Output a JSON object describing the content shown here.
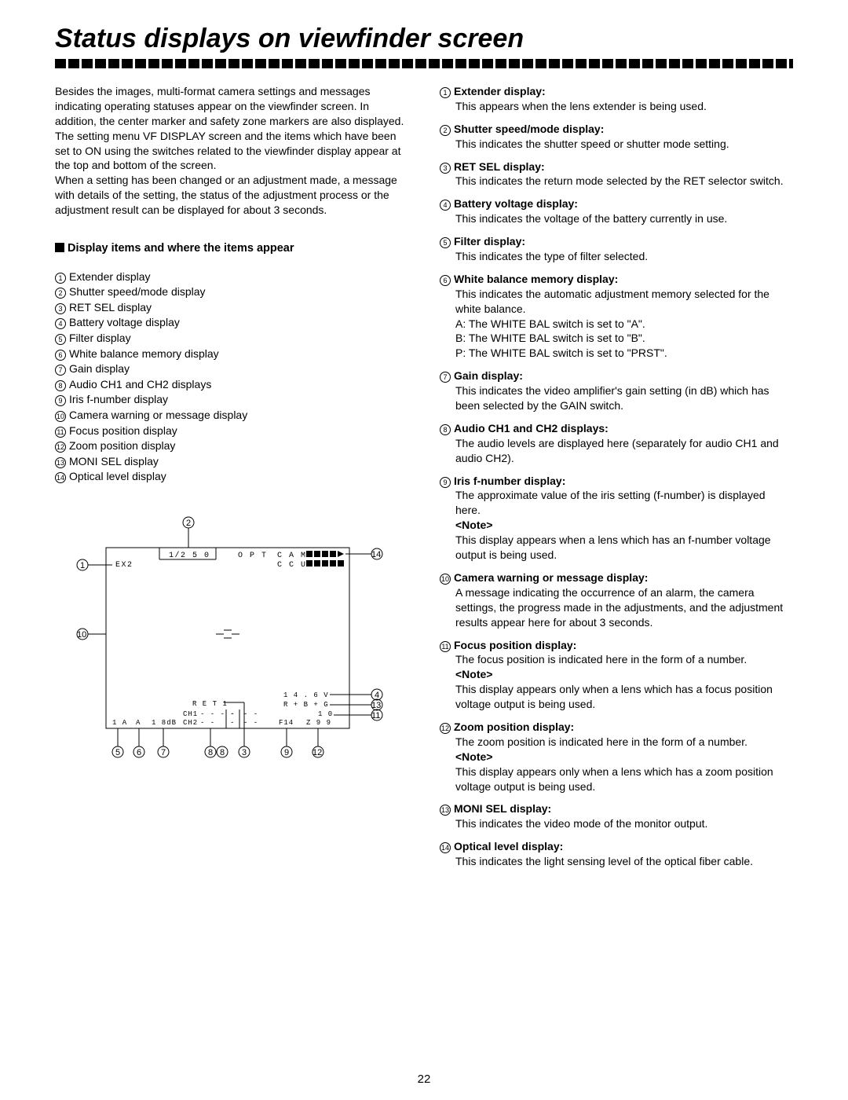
{
  "title": "Status displays on viewfinder screen",
  "intro": [
    "Besides the images, multi-format camera settings and messages indicating operating statuses appear on the viewfinder screen. In addition, the center marker and safety zone markers are also displayed.",
    "The setting menu VF DISPLAY screen and the items which have been set to ON using the switches related to the viewfinder display appear at the top and bottom of the screen.",
    "When a setting has been changed or an adjustment made, a message with details of the setting, the status of the adjustment process or the adjustment result can be displayed for about 3 seconds."
  ],
  "sectionHeading": "Display items and where the items appear",
  "items": [
    "Extender display",
    "Shutter speed/mode display",
    "RET SEL display",
    "Battery voltage display",
    "Filter display",
    "White balance memory display",
    "Gain display",
    "Audio CH1 and CH2 displays",
    "Iris f-number display",
    "Camera warning or message display",
    "Focus position display",
    "Zoom position display",
    "MONI SEL display",
    "Optical level display"
  ],
  "descriptions": [
    {
      "n": "1",
      "head": "Extender display:",
      "body": "This appears when the lens extender is being used."
    },
    {
      "n": "2",
      "head": "Shutter speed/mode display:",
      "body": "This indicates the shutter speed or shutter mode setting."
    },
    {
      "n": "3",
      "head": "RET SEL display:",
      "body": "This indicates the return mode selected by the RET selector switch."
    },
    {
      "n": "4",
      "head": "Battery voltage display:",
      "body": "This indicates the voltage of the battery currently in use."
    },
    {
      "n": "5",
      "head": "Filter display:",
      "body": "This indicates the type of filter selected."
    },
    {
      "n": "6",
      "head": "White balance memory display:",
      "body": "This indicates the automatic adjustment memory selected for the white balance.",
      "sub": [
        "A:  The WHITE BAL switch is set to \"A\".",
        "B:  The WHITE BAL switch is set to \"B\".",
        "P:  The WHITE BAL switch is set to \"PRST\"."
      ]
    },
    {
      "n": "7",
      "head": "Gain display:",
      "body": "This indicates the video amplifier's gain setting (in dB) which has been selected by the GAIN switch."
    },
    {
      "n": "8",
      "head": "Audio CH1 and CH2 displays:",
      "body": "The audio levels are displayed here (separately for audio CH1 and audio CH2)."
    },
    {
      "n": "9",
      "head": "Iris f-number display:",
      "body": "The approximate value of the iris setting (f-number) is displayed here.",
      "note": "<Note>",
      "noteBody": "This display appears when a lens which has an f-number voltage output is being used."
    },
    {
      "n": "10",
      "head": "Camera warning or message display:",
      "body": "A message indicating the occurrence of an alarm, the camera settings, the progress made in the adjustments, and the adjustment results appear here for about 3 seconds."
    },
    {
      "n": "11",
      "head": "Focus position display:",
      "body": "The focus position is indicated here in the form of a number.",
      "note": "<Note>",
      "noteBody": "This display appears only when a lens which has a focus position voltage output is being used."
    },
    {
      "n": "12",
      "head": "Zoom position display:",
      "body": "The zoom position is indicated here in the form of a number.",
      "note": "<Note>",
      "noteBody": "This display appears only when a lens which has a zoom position voltage output is being used."
    },
    {
      "n": "13",
      "head": "MONI SEL display:",
      "body": "This indicates the video mode of the monitor output."
    },
    {
      "n": "14",
      "head": "Optical level display:",
      "body": "This indicates the light sensing level of the optical fiber cable."
    }
  ],
  "diagram": {
    "topRow": {
      "ex2": "EX2",
      "shutter": "1/2 5 0",
      "opt": "O P T",
      "cam": "C A M",
      "ccu": "C C U"
    },
    "bottom": {
      "filter": "1 A",
      "wb": "A",
      "gain": "1 8dB",
      "ch1": "CH1",
      "ch2": "CH2",
      "ret": "R E T 1",
      "volt": "1 4 . 6 V",
      "moni": "R + B + G",
      "focus": "1 0",
      "iris": "F14",
      "zoom": "Z 9 9",
      "dashes": "- - - -",
      "dash1": "-",
      "dashes2": "- -"
    }
  },
  "pageNumber": "22"
}
